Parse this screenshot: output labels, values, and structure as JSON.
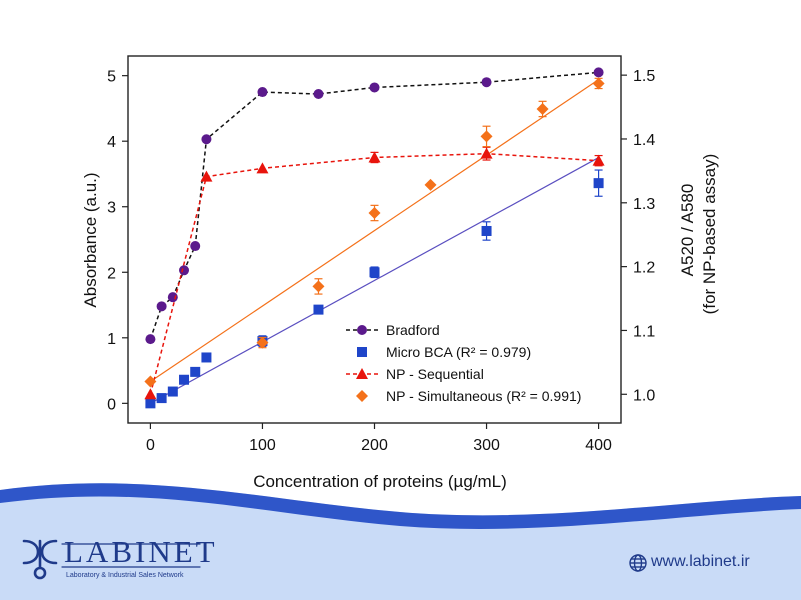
{
  "chart_data": {
    "type": "scatter",
    "xlabel": "Concentration of proteins (µg/mL)",
    "ylabel": "Absorbance (a.u.)",
    "y2label": "A520 / A580",
    "y2label_sub": "(for NP-based assay)",
    "xlim": [
      -20,
      420
    ],
    "ylim": [
      -0.3,
      5.3
    ],
    "y2lim": [
      0.955,
      1.53
    ],
    "x_ticks": [
      0,
      100,
      200,
      300,
      400
    ],
    "y_ticks": [
      0,
      1,
      2,
      3,
      4,
      5
    ],
    "y2_ticks": [
      1.0,
      1.1,
      1.2,
      1.3,
      1.4,
      1.5
    ],
    "y2_tick_labels": [
      "1.0",
      "1.1",
      "1.2",
      "1.3",
      "1.4",
      "1.5"
    ],
    "legend_position": "bottom-right",
    "series": [
      {
        "name": "Bradford",
        "legend_label": "Bradford",
        "axis": "left",
        "marker": "circle",
        "color": "#5b1a8c",
        "line": "dashed",
        "x": [
          0,
          10,
          20,
          30,
          40,
          50,
          100,
          150,
          200,
          300,
          400
        ],
        "y": [
          0.98,
          1.48,
          1.62,
          2.03,
          2.4,
          4.03,
          4.75,
          4.72,
          4.82,
          4.9,
          5.05
        ]
      },
      {
        "name": "Micro BCA",
        "legend_label": "Micro BCA (R² = 0.979)",
        "axis": "left",
        "marker": "square",
        "color": "#1f45c9",
        "line": "none",
        "fit": [
          0,
          3.75
        ],
        "fit_color": "#5a4fc0",
        "x": [
          0,
          10,
          20,
          30,
          40,
          50,
          100,
          150,
          200,
          300,
          400
        ],
        "y": [
          0,
          0.08,
          0.18,
          0.36,
          0.48,
          0.7,
          0.95,
          1.43,
          2.0,
          2.63,
          3.36
        ],
        "err": [
          0,
          0,
          0,
          0,
          0,
          0,
          0.08,
          0,
          0.08,
          0.14,
          0.2
        ]
      },
      {
        "name": "NP - Sequential",
        "legend_label": "NP - Sequential",
        "axis": "right",
        "marker": "triangle",
        "color": "#e8140c",
        "line": "dashed",
        "x": [
          0,
          50,
          100,
          200,
          300,
          400
        ],
        "y": [
          1.0,
          1.341,
          1.354,
          1.371,
          1.377,
          1.366
        ],
        "err": [
          0,
          0,
          0,
          0.008,
          0.01,
          0.008
        ]
      },
      {
        "name": "NP - Simultaneous",
        "legend_label": "NP - Simultaneous (R² = 0.991)",
        "axis": "right",
        "marker": "diamond",
        "color": "#f4711a",
        "line": "none",
        "fit": [
          1.02,
          1.493
        ],
        "fit_color": "#f4711a",
        "x": [
          0,
          100,
          150,
          200,
          250,
          300,
          350,
          400
        ],
        "y": [
          1.02,
          1.081,
          1.169,
          1.284,
          1.328,
          1.404,
          1.447,
          1.487
        ],
        "err": [
          0,
          0.008,
          0.012,
          0.012,
          0,
          0.016,
          0.012,
          0.008
        ]
      }
    ]
  },
  "footer": {
    "brand": "LABINET",
    "tagline": "Laboratory & Industrial Sales Network",
    "website": "www.labinet.ir",
    "brand_color": "#1f3a8a",
    "band_color": "#c9dbf7",
    "wave_color": "#2f56c9",
    "icons": [
      "labinet-logo-icon",
      "globe-icon"
    ]
  }
}
